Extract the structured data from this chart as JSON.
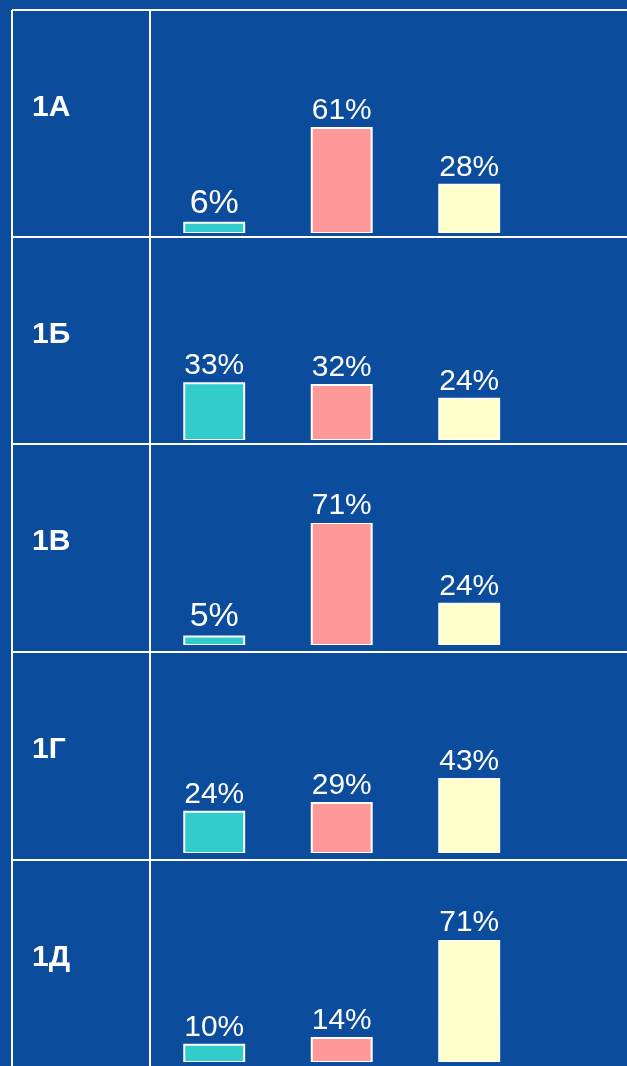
{
  "chart_data": [
    {
      "type": "bar",
      "title": "1А",
      "categories": [
        null,
        null,
        null
      ],
      "values": [
        6,
        61,
        28
      ],
      "value_labels": [
        "6%",
        "61%",
        "28%"
      ],
      "colors": [
        "#33cccc",
        "#ff9999",
        "#ffffcc"
      ]
    },
    {
      "type": "bar",
      "title": "1Б",
      "categories": [
        null,
        null,
        null
      ],
      "values": [
        33,
        32,
        24
      ],
      "value_labels": [
        "33%",
        "32%",
        "24%"
      ],
      "colors": [
        "#33cccc",
        "#ff9999",
        "#ffffcc"
      ]
    },
    {
      "type": "bar",
      "title": "1В",
      "categories": [
        null,
        null,
        null
      ],
      "values": [
        5,
        71,
        24
      ],
      "value_labels": [
        "5%",
        "71%",
        "24%"
      ],
      "colors": [
        "#33cccc",
        "#ff9999",
        "#ffffcc"
      ]
    },
    {
      "type": "bar",
      "title": "1Г",
      "categories": [
        null,
        null,
        null
      ],
      "values": [
        24,
        29,
        43
      ],
      "value_labels": [
        "24%",
        "29%",
        "43%"
      ],
      "colors": [
        "#33cccc",
        "#ff9999",
        "#ffffcc"
      ]
    },
    {
      "type": "bar",
      "title": "1Д",
      "categories": [
        null,
        null,
        null
      ],
      "values": [
        10,
        14,
        71
      ],
      "value_labels": [
        "10%",
        "14%",
        "71%"
      ],
      "colors": [
        "#33cccc",
        "#ff9999",
        "#ffffcc"
      ]
    }
  ]
}
